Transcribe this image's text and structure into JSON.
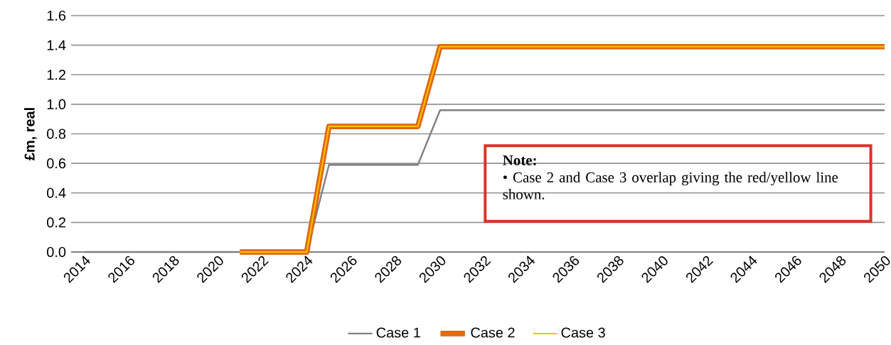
{
  "chart_data": {
    "type": "line",
    "ylabel": "£m, real",
    "xlim": [
      2013.4,
      2050
    ],
    "xticks": [
      2014,
      2016,
      2018,
      2020,
      2022,
      2024,
      2026,
      2028,
      2030,
      2032,
      2034,
      2036,
      2038,
      2040,
      2042,
      2044,
      2046,
      2048,
      2050
    ],
    "ylim": [
      0,
      1.6
    ],
    "yticks": [
      {
        "value": 0,
        "label": "0.0"
      },
      {
        "value": 0.2,
        "label": "0.2"
      },
      {
        "value": 0.4,
        "label": "0.4"
      },
      {
        "value": 0.6,
        "label": "0.6"
      },
      {
        "value": 0.8,
        "label": "0.8"
      },
      {
        "value": 1.0,
        "label": "1.0"
      },
      {
        "value": 1.2,
        "label": "1.2"
      },
      {
        "value": 1.4,
        "label": "1.4"
      },
      {
        "value": 1.6,
        "label": "1.6"
      }
    ],
    "series": [
      {
        "name": "Case 1",
        "color": "#808080",
        "x": [
          2014,
          2024,
          2025,
          2029,
          2030,
          2050
        ],
        "values": [
          0,
          0,
          0.59,
          0.59,
          0.96,
          0.96
        ]
      },
      {
        "name": "Case 2",
        "color": "#e46c0a",
        "x": [
          2021,
          2024,
          2025,
          2029,
          2030,
          2050
        ],
        "values": [
          0,
          0,
          0.85,
          0.85,
          1.39,
          1.39
        ]
      },
      {
        "name": "Case 3",
        "color": "#ffc000",
        "x": [
          2021,
          2024,
          2025,
          2029,
          2030,
          2050
        ],
        "values": [
          0,
          0,
          0.85,
          0.85,
          1.39,
          1.39
        ]
      }
    ],
    "annotations": [
      "Note:",
      "• Case 2 and Case 3 overlap giving the red/yellow line shown."
    ],
    "grid": "y",
    "legend": "bottom",
    "line_style": "solid"
  }
}
